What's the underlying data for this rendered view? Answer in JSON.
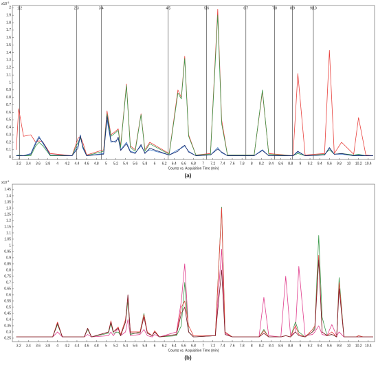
{
  "chart_data": [
    {
      "type": "line",
      "x_label": "Counts vs. Acquisition Time (min)",
      "panel_label": "(a)",
      "y_scale_label": "x10",
      "y_scale_exponent": "6",
      "xlim": [
        3.07,
        10.53
      ],
      "ylim": [
        -0.03,
        2.03
      ],
      "xticks": [
        3.2,
        3.4,
        3.6,
        3.8,
        4,
        4.2,
        4.4,
        4.6,
        4.8,
        5,
        5.2,
        5.4,
        5.6,
        5.8,
        6,
        6.2,
        6.4,
        6.6,
        6.8,
        7,
        7.2,
        7.4,
        7.6,
        7.8,
        8,
        8.2,
        8.4,
        8.6,
        8.8,
        9,
        9.2,
        9.4,
        9.6,
        9.8,
        10,
        10.2,
        10.4
      ],
      "yticks": [
        0,
        0.1,
        0.2,
        0.3,
        0.4,
        0.5,
        0.6,
        0.7,
        0.8,
        0.9,
        1,
        1.1,
        1.2,
        1.3,
        1.4,
        1.5,
        1.6,
        1.7,
        1.8,
        1.9,
        2
      ],
      "segments": [
        {
          "label": "1|2",
          "x": 3.22
        },
        {
          "label": "2|3",
          "x": 4.39
        },
        {
          "label": "3|4",
          "x": 4.9
        },
        {
          "label": "4|5",
          "x": 6.28
        },
        {
          "label": "5|6",
          "x": 7.07
        },
        {
          "label": "6|7",
          "x": 7.88
        },
        {
          "label": "7|8",
          "x": 8.47
        },
        {
          "label": "8|9",
          "x": 8.84
        },
        {
          "label": "9|10",
          "x": 9.27
        }
      ],
      "x": [
        3.15,
        3.2,
        3.3,
        3.45,
        3.55,
        3.62,
        3.7,
        3.85,
        4.3,
        4.42,
        4.47,
        4.52,
        4.6,
        4.95,
        5.02,
        5.1,
        5.2,
        5.25,
        5.3,
        5.42,
        5.5,
        5.6,
        5.72,
        5.8,
        5.9,
        6.3,
        6.48,
        6.55,
        6.62,
        6.7,
        6.85,
        7.15,
        7.3,
        7.38,
        7.5,
        8.05,
        8.22,
        8.35,
        8.85,
        8.95,
        9.1,
        9.5,
        9.6,
        9.7,
        9.85,
        10.1,
        10.2,
        10.35,
        10.5
      ],
      "series": [
        {
          "color": "#e8403c",
          "values": [
            0.1,
            0.65,
            0.28,
            0.3,
            0.2,
            0.22,
            0.2,
            0.05,
            0.02,
            0.25,
            0.28,
            0.2,
            0.03,
            0.1,
            0.62,
            0.3,
            0.35,
            0.38,
            0.15,
            0.98,
            0.15,
            0.1,
            0.58,
            0.1,
            0.2,
            0.05,
            0.9,
            0.8,
            1.35,
            0.3,
            0.03,
            0.05,
            1.98,
            0.5,
            0.03,
            0.03,
            0.88,
            0.05,
            0.02,
            1.12,
            0.03,
            0.05,
            1.43,
            0.05,
            0.2,
            0.04,
            0.53,
            0.03,
            0.02
          ]
        },
        {
          "color": "#3a9a4a",
          "values": [
            0.02,
            0.03,
            0.02,
            0.02,
            0.15,
            0.2,
            0.15,
            0.02,
            0.02,
            0.2,
            0.26,
            0.15,
            0.02,
            0.08,
            0.58,
            0.28,
            0.33,
            0.36,
            0.13,
            0.96,
            0.13,
            0.08,
            0.57,
            0.08,
            0.18,
            0.04,
            0.86,
            0.78,
            1.32,
            0.28,
            0.03,
            0.04,
            1.9,
            0.45,
            0.03,
            0.03,
            0.9,
            0.04,
            0.02,
            0.05,
            0.02,
            0.04,
            0.1,
            0.04,
            0.05,
            0.03,
            0.04,
            0.02,
            0.02
          ]
        },
        {
          "color": "#3a78c8",
          "values": [
            0.02,
            0.02,
            0.02,
            0.05,
            0.2,
            0.28,
            0.18,
            0.03,
            0.02,
            0.15,
            0.3,
            0.12,
            0.02,
            0.05,
            0.5,
            0.2,
            0.22,
            0.25,
            0.1,
            0.2,
            0.08,
            0.06,
            0.15,
            0.06,
            0.1,
            0.03,
            0.1,
            0.12,
            0.15,
            0.08,
            0.02,
            0.03,
            0.13,
            0.06,
            0.02,
            0.02,
            0.1,
            0.02,
            0.02,
            0.07,
            0.02,
            0.03,
            0.12,
            0.04,
            0.04,
            0.02,
            0.03,
            0.02,
            0.02
          ]
        },
        {
          "color": "#1c2a6a",
          "values": [
            0.02,
            0.02,
            0.02,
            0.04,
            0.18,
            0.26,
            0.2,
            0.03,
            0.02,
            0.12,
            0.29,
            0.14,
            0.02,
            0.04,
            0.55,
            0.22,
            0.2,
            0.27,
            0.09,
            0.18,
            0.07,
            0.05,
            0.17,
            0.05,
            0.12,
            0.03,
            0.08,
            0.13,
            0.16,
            0.07,
            0.02,
            0.03,
            0.11,
            0.07,
            0.02,
            0.02,
            0.09,
            0.02,
            0.02,
            0.08,
            0.02,
            0.03,
            0.13,
            0.04,
            0.05,
            0.02,
            0.02,
            0.02,
            0.02
          ]
        }
      ]
    },
    {
      "type": "line",
      "x_label": "Counts vs. Acquisition Time (min)",
      "panel_label": "(b)",
      "y_scale_label": "x10",
      "y_scale_exponent": "6",
      "xlim": [
        3.07,
        10.53
      ],
      "ylim": [
        0.222,
        1.494
      ],
      "xticks": [
        3.2,
        3.4,
        3.6,
        3.8,
        4,
        4.2,
        4.4,
        4.6,
        4.8,
        5,
        5.2,
        5.4,
        5.6,
        5.8,
        6,
        6.2,
        6.4,
        6.6,
        6.8,
        7,
        7.2,
        7.4,
        7.6,
        7.8,
        8,
        8.2,
        8.4,
        8.6,
        8.8,
        9,
        9.2,
        9.4,
        9.6,
        9.8,
        10,
        10.2,
        10.4
      ],
      "yticks": [
        0.25,
        0.3,
        0.35,
        0.4,
        0.45,
        0.5,
        0.55,
        0.6,
        0.65,
        0.7,
        0.75,
        0.8,
        0.85,
        0.9,
        0.95,
        1,
        1.05,
        1.1,
        1.15,
        1.2,
        1.25,
        1.3,
        1.35,
        1.4,
        1.45
      ],
      "x": [
        3.15,
        3.9,
        4.0,
        4.1,
        4.55,
        4.62,
        4.7,
        5.05,
        5.1,
        5.15,
        5.25,
        5.3,
        5.4,
        5.45,
        5.5,
        5.7,
        5.78,
        5.85,
        5.95,
        6.0,
        6.1,
        6.45,
        6.55,
        6.62,
        6.7,
        6.8,
        7.25,
        7.38,
        7.45,
        7.6,
        8.15,
        8.25,
        8.35,
        8.6,
        8.7,
        8.8,
        8.9,
        8.97,
        9.1,
        9.25,
        9.3,
        9.38,
        9.45,
        9.55,
        9.65,
        9.75,
        9.8,
        9.9,
        10.15,
        10.2,
        10.3,
        10.5
      ],
      "series": [
        {
          "color": "#e03c8c",
          "values": [
            0.26,
            0.26,
            0.3,
            0.26,
            0.26,
            0.28,
            0.26,
            0.27,
            0.3,
            0.27,
            0.33,
            0.27,
            0.3,
            0.4,
            0.27,
            0.28,
            0.32,
            0.27,
            0.26,
            0.28,
            0.26,
            0.3,
            0.55,
            0.85,
            0.3,
            0.26,
            0.27,
            0.97,
            0.29,
            0.26,
            0.26,
            0.58,
            0.27,
            0.26,
            0.75,
            0.27,
            0.3,
            0.83,
            0.27,
            0.28,
            0.3,
            0.35,
            0.28,
            0.27,
            0.36,
            0.27,
            0.3,
            0.26,
            0.26,
            0.26,
            0.26,
            0.26
          ]
        },
        {
          "color": "#3a9a4a",
          "values": [
            0.26,
            0.26,
            0.36,
            0.26,
            0.26,
            0.32,
            0.26,
            0.29,
            0.37,
            0.29,
            0.3,
            0.27,
            0.38,
            0.55,
            0.28,
            0.3,
            0.45,
            0.29,
            0.27,
            0.3,
            0.26,
            0.27,
            0.35,
            0.7,
            0.3,
            0.26,
            0.27,
            1.31,
            0.3,
            0.26,
            0.26,
            0.32,
            0.26,
            0.26,
            0.27,
            0.26,
            0.38,
            0.3,
            0.26,
            0.3,
            0.34,
            1.08,
            0.42,
            0.27,
            0.28,
            0.26,
            0.74,
            0.26,
            0.26,
            0.27,
            0.26,
            0.26
          ]
        },
        {
          "color": "#e8403c",
          "values": [
            0.26,
            0.26,
            0.38,
            0.26,
            0.26,
            0.33,
            0.26,
            0.3,
            0.39,
            0.3,
            0.34,
            0.28,
            0.4,
            0.58,
            0.3,
            0.3,
            0.44,
            0.3,
            0.27,
            0.31,
            0.26,
            0.28,
            0.5,
            0.55,
            0.35,
            0.27,
            0.27,
            1.3,
            0.3,
            0.26,
            0.26,
            0.31,
            0.26,
            0.26,
            0.27,
            0.26,
            0.35,
            0.28,
            0.26,
            0.32,
            0.35,
            0.92,
            0.3,
            0.27,
            0.3,
            0.26,
            0.7,
            0.26,
            0.26,
            0.27,
            0.26,
            0.26
          ]
        },
        {
          "color": "#7a1a2a",
          "values": [
            0.26,
            0.26,
            0.37,
            0.26,
            0.26,
            0.33,
            0.26,
            0.3,
            0.38,
            0.3,
            0.33,
            0.27,
            0.38,
            0.6,
            0.29,
            0.29,
            0.42,
            0.29,
            0.27,
            0.3,
            0.26,
            0.28,
            0.45,
            0.5,
            0.3,
            0.26,
            0.27,
            0.8,
            0.28,
            0.26,
            0.26,
            0.29,
            0.26,
            0.26,
            0.27,
            0.26,
            0.3,
            0.27,
            0.26,
            0.3,
            0.32,
            0.88,
            0.3,
            0.27,
            0.28,
            0.26,
            0.65,
            0.26,
            0.26,
            0.26,
            0.26,
            0.26
          ]
        }
      ]
    }
  ]
}
